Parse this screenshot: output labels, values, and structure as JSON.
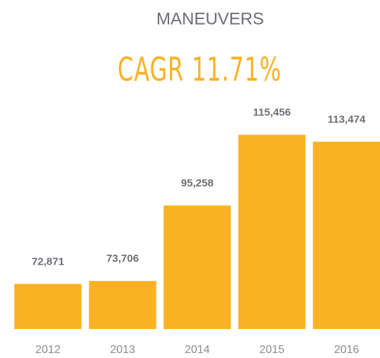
{
  "chart_data": {
    "type": "bar",
    "title": "MANEUVERS",
    "subtitle": "CAGR 11.71%",
    "categories": [
      "2012",
      "2013",
      "2014",
      "2015",
      "2016"
    ],
    "values": [
      72871,
      73706,
      95258,
      115456,
      113474
    ],
    "value_labels": [
      "72,871",
      "73,706",
      "95,258",
      "115,456",
      "113,474"
    ],
    "color": "#fab223",
    "ylim": [
      60000,
      120000
    ]
  }
}
